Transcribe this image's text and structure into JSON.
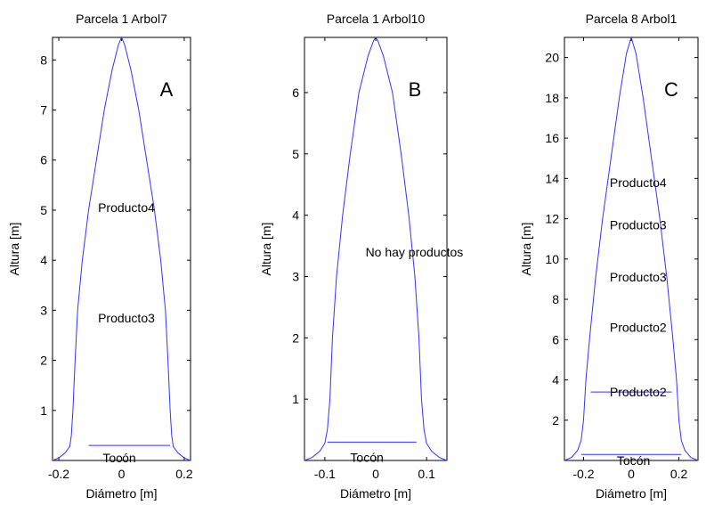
{
  "colors": {
    "profile": "#3333ff",
    "axis": "#000000",
    "background": "#ffffff"
  },
  "chart_data": [
    {
      "type": "line",
      "title": "Parcela 1 Arbol7",
      "xlabel": "Diámetro [m]",
      "ylabel": "Altura [m]",
      "xlim": [
        -0.22,
        0.22
      ],
      "ylim": [
        0,
        8.45
      ],
      "xticks": [
        "-0.2",
        "0",
        "0.2"
      ],
      "xtick_values": [
        -0.2,
        0,
        0.2
      ],
      "yticks": [
        "1",
        "2",
        "3",
        "4",
        "5",
        "6",
        "7",
        "8"
      ],
      "ytick_values": [
        1,
        2,
        3,
        4,
        5,
        6,
        7,
        8
      ],
      "panel_letter": "A",
      "profile": {
        "name": "",
        "x": [
          0.22,
          0.2,
          0.18,
          0.165,
          0.16,
          0.155,
          0.148,
          0.14,
          0.125,
          0.105,
          0.08,
          0.055,
          0.03,
          0.01,
          0
        ],
        "y": [
          0,
          0.05,
          0.15,
          0.28,
          0.5,
          1.0,
          2.0,
          3.0,
          4.0,
          5.0,
          6.0,
          7.0,
          7.8,
          8.3,
          8.45
        ]
      },
      "lines": [
        {
          "y": 0.3,
          "x": [
            -0.105,
            0.155
          ]
        }
      ],
      "labels": [
        {
          "text": "Tocón",
          "x": -0.06,
          "y": 0.05
        },
        {
          "text": "Producto4",
          "x": -0.075,
          "y": 5.05
        },
        {
          "text": "Producto3",
          "x": -0.075,
          "y": 2.85
        }
      ]
    },
    {
      "type": "line",
      "title": "Parcela 1 Arbol10",
      "xlabel": "Diámetro [m]",
      "ylabel": "Altura [m]",
      "xlim": [
        -0.14,
        0.14
      ],
      "ylim": [
        0,
        6.9
      ],
      "xticks": [
        "-0.1",
        "0",
        "0.1"
      ],
      "xtick_values": [
        -0.1,
        0,
        0.1
      ],
      "yticks": [
        "1",
        "2",
        "3",
        "4",
        "5",
        "6"
      ],
      "ytick_values": [
        1,
        2,
        3,
        4,
        5,
        6
      ],
      "panel_letter": "B",
      "profile": {
        "name": "",
        "x": [
          0.14,
          0.125,
          0.11,
          0.1,
          0.095,
          0.09,
          0.085,
          0.077,
          0.065,
          0.05,
          0.033,
          0.015,
          0.004,
          0
        ],
        "y": [
          0,
          0.05,
          0.15,
          0.28,
          0.5,
          1.0,
          2.0,
          3.0,
          4.0,
          5.0,
          6.0,
          6.6,
          6.85,
          6.9
        ]
      },
      "lines": [
        {
          "y": 0.3,
          "x": [
            -0.095,
            0.08
          ]
        }
      ],
      "labels": [
        {
          "text": "Tocón",
          "x": -0.05,
          "y": 0.05
        },
        {
          "text": "No hay productos",
          "x": -0.02,
          "y": 3.4
        }
      ]
    },
    {
      "type": "line",
      "title": "Parcela 8 Arbol1",
      "xlabel": "Diámetro [m]",
      "ylabel": "Altura [m]",
      "xlim": [
        -0.28,
        0.28
      ],
      "ylim": [
        0,
        21
      ],
      "xticks": [
        "-0.2",
        "0",
        "0.2"
      ],
      "xtick_values": [
        -0.2,
        0,
        0.2
      ],
      "yticks": [
        "2",
        "4",
        "6",
        "8",
        "10",
        "12",
        "14",
        "16",
        "18",
        "20"
      ],
      "ytick_values": [
        2,
        4,
        6,
        8,
        10,
        12,
        14,
        16,
        18,
        20
      ],
      "panel_letter": "C",
      "profile": {
        "name": "",
        "x": [
          0.28,
          0.25,
          0.225,
          0.21,
          0.2,
          0.19,
          0.175,
          0.15,
          0.12,
          0.085,
          0.05,
          0.02,
          0
        ],
        "y": [
          0,
          0.15,
          0.5,
          1.0,
          2.0,
          4.0,
          6.0,
          9.0,
          12.0,
          15.0,
          18.0,
          20.2,
          21
        ]
      },
      "lines": [
        {
          "y": 0.3,
          "x": [
            -0.21,
            0.21
          ]
        },
        {
          "y": 3.4,
          "x": [
            -0.17,
            0.17
          ]
        }
      ],
      "labels": [
        {
          "text": "Tocón",
          "x": -0.06,
          "y": 0.0
        },
        {
          "text": "Producto2",
          "x": -0.09,
          "y": 3.4
        },
        {
          "text": "Producto2",
          "x": -0.09,
          "y": 6.6
        },
        {
          "text": "Producto3",
          "x": -0.09,
          "y": 9.1
        },
        {
          "text": "Producto3",
          "x": -0.09,
          "y": 11.7
        },
        {
          "text": "Producto4",
          "x": -0.09,
          "y": 13.8
        }
      ]
    }
  ]
}
